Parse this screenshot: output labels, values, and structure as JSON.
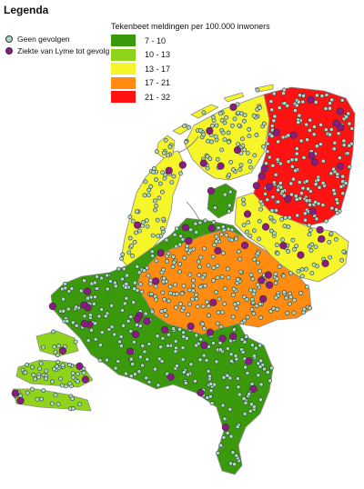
{
  "title": "Legenda",
  "dot_legend": [
    {
      "label": "Geen gevolgen",
      "color": "#a8dcc6"
    },
    {
      "label": "Ziekte van Lyme tot gevolg",
      "color": "#8b1a83"
    }
  ],
  "class_legend": {
    "heading": "Tekenbeet meldingen per 100.000 inwoners",
    "classes": [
      {
        "label": "7 - 10",
        "color": "#3a9a0b"
      },
      {
        "label": "10 - 13",
        "color": "#8fd41a"
      },
      {
        "label": "13 - 17",
        "color": "#f5f52a"
      },
      {
        "label": "17 - 21",
        "color": "#ff8c10"
      },
      {
        "label": "21 - 32",
        "color": "#ff1212"
      }
    ]
  },
  "colors": {
    "water_line": "#777777",
    "region_border": "#8a8a8a"
  }
}
